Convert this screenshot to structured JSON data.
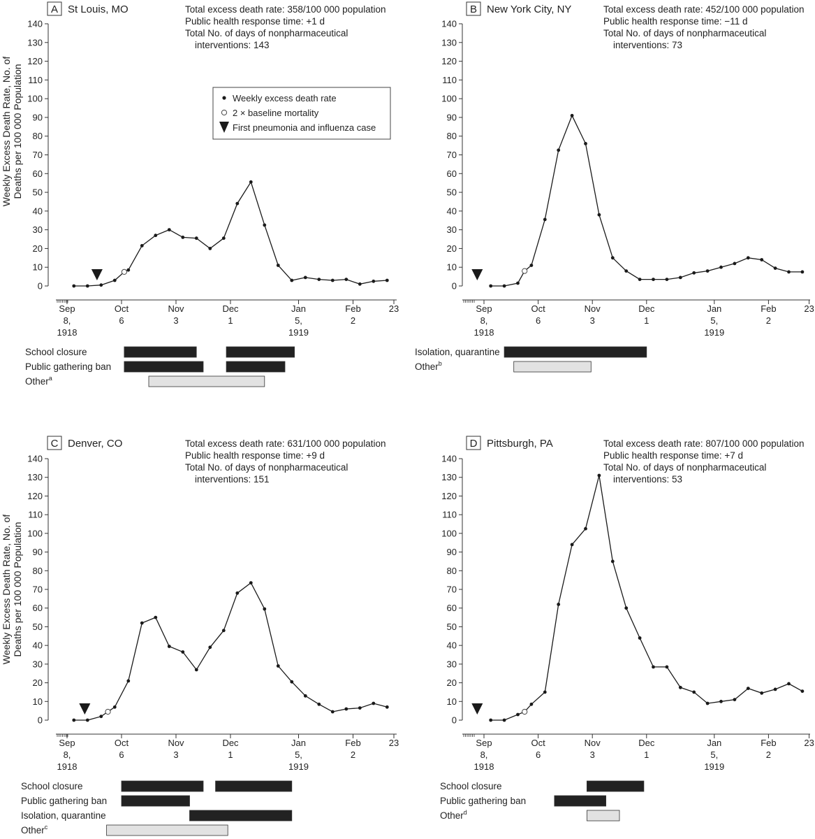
{
  "y_axis_label_line1": "Weekly Excess Death Rate, No. of",
  "y_axis_label_line2": "Deaths per 100 000 Population",
  "colors": {
    "line": "#1a1a1a",
    "bar_dark": "#222222",
    "bar_light": "#e2e2e2",
    "axis": "#333333"
  },
  "legend": {
    "items": [
      {
        "symbol": "filled-circle-icon",
        "label": "Weekly excess death rate"
      },
      {
        "symbol": "open-circle-icon",
        "label": "2 × baseline mortality"
      },
      {
        "symbol": "down-triangle-icon",
        "label": "First pneumonia and influenza case"
      }
    ]
  },
  "x_ticks": [
    {
      "w": 0,
      "l1": "Sep",
      "l2": "8,",
      "l3": "1918"
    },
    {
      "w": 4,
      "l1": "Oct",
      "l2": "6",
      "l3": ""
    },
    {
      "w": 8,
      "l1": "Nov",
      "l2": "3",
      "l3": ""
    },
    {
      "w": 12,
      "l1": "Dec",
      "l2": "1",
      "l3": ""
    },
    {
      "w": 17,
      "l1": "Jan",
      "l2": "5,",
      "l3": "1919"
    },
    {
      "w": 21,
      "l1": "Feb",
      "l2": "2",
      "l3": ""
    },
    {
      "w": 24,
      "l1": "23",
      "l2": "",
      "l3": ""
    }
  ],
  "chart_data": [
    {
      "type": "line",
      "panel_letter": "A",
      "city": "St Louis, MO",
      "stats": [
        "Total excess death rate: 358/100 000 population",
        "Public health response time: +1 d",
        "Total No. of days of nonpharmaceutical",
        "interventions: 143"
      ],
      "ylim": [
        0,
        140
      ],
      "yticks": [
        0,
        10,
        20,
        30,
        40,
        50,
        60,
        70,
        80,
        90,
        100,
        110,
        120,
        130,
        140
      ],
      "x_weeks": [
        0.5,
        1.5,
        2.5,
        3.5,
        4.2,
        4.5,
        5.5,
        6.5,
        7.5,
        8.5,
        9.5,
        10.5,
        11.5,
        12.5,
        13.5,
        14.5,
        15.5,
        16.5,
        17.5,
        18.5,
        19.5,
        20.5,
        21.5,
        22.5,
        23.5
      ],
      "values": [
        0,
        0,
        0.5,
        3,
        7.5,
        8.5,
        21.5,
        27,
        30,
        26,
        25.5,
        20,
        25.5,
        44,
        55.5,
        32.5,
        11,
        3,
        4.5,
        3.5,
        3,
        3.5,
        1,
        2.5,
        3
      ],
      "baseline_index": 4,
      "first_case_week": 2.2,
      "interventions": [
        {
          "label": "School closure",
          "footnote": "",
          "style": "dark",
          "bars": [
            [
              4.2,
              9.5
            ],
            [
              11.7,
              16.7
            ]
          ]
        },
        {
          "label": "Public gathering ban",
          "footnote": "",
          "style": "dark",
          "bars": [
            [
              4.2,
              10.0
            ],
            [
              11.7,
              16.0
            ]
          ]
        },
        {
          "label": "Other",
          "footnote": "a",
          "style": "light",
          "bars": [
            [
              6.0,
              14.5
            ]
          ]
        }
      ]
    },
    {
      "type": "line",
      "panel_letter": "B",
      "city": "New York City, NY",
      "stats": [
        "Total excess death rate: 452/100 000 population",
        "Public health response time: −11 d",
        "Total No. of days of nonpharmaceutical",
        "interventions: 73"
      ],
      "ylim": [
        0,
        140
      ],
      "yticks": [
        0,
        10,
        20,
        30,
        40,
        50,
        60,
        70,
        80,
        90,
        100,
        110,
        120,
        130,
        140
      ],
      "x_weeks": [
        0.5,
        1.5,
        2.5,
        3.0,
        3.5,
        4.5,
        5.5,
        6.5,
        7.5,
        8.5,
        9.5,
        10.5,
        11.5,
        12.5,
        13.5,
        14.5,
        15.5,
        16.5,
        17.5,
        18.5,
        19.5,
        20.5,
        21.5,
        22.5,
        23.5
      ],
      "values": [
        0,
        0,
        1.5,
        8,
        11,
        35.5,
        72.5,
        91,
        76,
        38,
        15,
        8,
        3.5,
        3.5,
        3.5,
        4.5,
        7,
        8,
        10,
        12,
        15,
        14,
        9.5,
        7.5,
        7.5
      ],
      "baseline_index": 3,
      "first_case_week": -0.5,
      "interventions": [
        {
          "label": "Isolation, quarantine",
          "footnote": "",
          "style": "dark",
          "bars": [
            [
              1.5,
              12.0
            ]
          ]
        },
        {
          "label": "Other",
          "footnote": "b",
          "style": "light",
          "bars": [
            [
              2.2,
              7.9
            ]
          ]
        }
      ]
    },
    {
      "type": "line",
      "panel_letter": "C",
      "city": "Denver, CO",
      "stats": [
        "Total excess death rate: 631/100 000 population",
        "Public health response time: +9 d",
        "Total No. of days of nonpharmaceutical",
        "interventions: 151"
      ],
      "ylim": [
        0,
        140
      ],
      "yticks": [
        0,
        10,
        20,
        30,
        40,
        50,
        60,
        70,
        80,
        90,
        100,
        110,
        120,
        130,
        140
      ],
      "x_weeks": [
        0.5,
        1.5,
        2.5,
        3.0,
        3.5,
        4.5,
        5.5,
        6.5,
        7.5,
        8.5,
        9.5,
        10.5,
        11.5,
        12.5,
        13.5,
        14.5,
        15.5,
        16.5,
        17.5,
        18.5,
        19.5,
        20.5,
        21.5,
        22.5,
        23.5
      ],
      "values": [
        0,
        0,
        2,
        4.5,
        7,
        21,
        52,
        55,
        39.5,
        36.5,
        27,
        39,
        48,
        68,
        73.5,
        59.5,
        29,
        20.5,
        13,
        8.5,
        4.5,
        6,
        6.5,
        9,
        7
      ],
      "baseline_index": 3,
      "first_case_week": 1.3,
      "interventions": [
        {
          "label": "School closure",
          "footnote": "",
          "style": "dark",
          "bars": [
            [
              4.0,
              10.0
            ],
            [
              10.9,
              16.5
            ]
          ]
        },
        {
          "label": "Public gathering ban",
          "footnote": "",
          "style": "dark",
          "bars": [
            [
              4.0,
              9.0
            ]
          ]
        },
        {
          "label": "Isolation, quarantine",
          "footnote": "",
          "style": "dark",
          "bars": [
            [
              9.0,
              16.5
            ]
          ]
        },
        {
          "label": "Other",
          "footnote": "c",
          "style": "light",
          "bars": [
            [
              2.9,
              11.8
            ]
          ]
        }
      ]
    },
    {
      "type": "line",
      "panel_letter": "D",
      "city": "Pittsburgh, PA",
      "stats": [
        "Total excess death rate: 807/100 000 population",
        "Public health response time: +7 d",
        "Total No. of days of nonpharmaceutical",
        "interventions: 53"
      ],
      "ylim": [
        0,
        140
      ],
      "yticks": [
        0,
        10,
        20,
        30,
        40,
        50,
        60,
        70,
        80,
        90,
        100,
        110,
        120,
        130,
        140
      ],
      "x_weeks": [
        0.5,
        1.5,
        2.5,
        3.0,
        3.5,
        4.5,
        5.5,
        6.5,
        7.5,
        8.5,
        9.5,
        10.5,
        11.5,
        12.5,
        13.5,
        14.5,
        15.5,
        16.5,
        17.5,
        18.5,
        19.5,
        20.5,
        21.5,
        22.5,
        23.5
      ],
      "values": [
        0,
        0,
        3,
        4.5,
        8.5,
        15,
        62,
        94,
        102.5,
        131,
        85,
        60,
        44,
        28.5,
        28.5,
        17.5,
        15,
        9,
        10,
        11,
        17,
        14.5,
        16.5,
        19.5,
        15.5
      ],
      "baseline_index": 3,
      "first_case_week": -0.5,
      "interventions": [
        {
          "label": "School closure",
          "footnote": "",
          "style": "dark",
          "bars": [
            [
              7.6,
              11.8
            ]
          ]
        },
        {
          "label": "Public gathering ban",
          "footnote": "",
          "style": "dark",
          "bars": [
            [
              5.2,
              9.0
            ]
          ]
        },
        {
          "label": "Other",
          "footnote": "d",
          "style": "light",
          "bars": [
            [
              7.6,
              10.0
            ]
          ]
        }
      ]
    }
  ]
}
